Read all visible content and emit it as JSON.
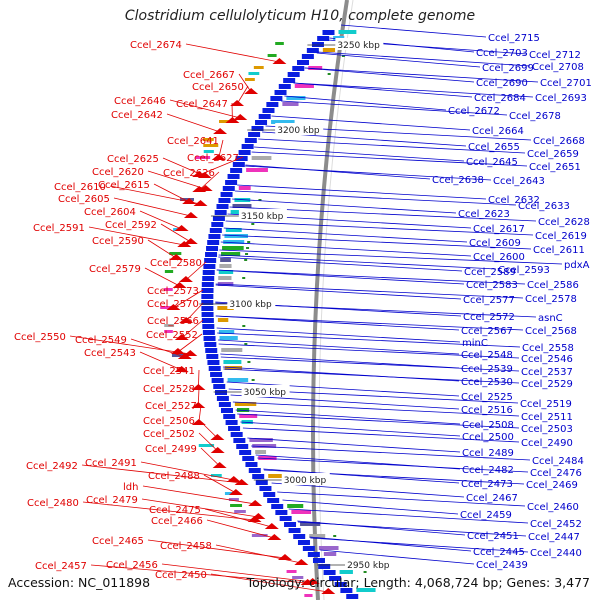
{
  "title": "Clostridium cellulolyticum H10, complete genome",
  "accession": "Accession: NC_011898",
  "summary": "Topology: circular; Length: 4,068,724 bp; Genes: 3,477",
  "kbp_marks": [
    "3250 kbp",
    "3200 kbp",
    "3150 kbp",
    "3100 kbp",
    "3050 kbp",
    "3000 kbp",
    "2950 kbp"
  ],
  "left_labels": [
    "Ccel_2674",
    "Ccel_2667",
    "Ccel_2650",
    "Ccel_2646",
    "Ccel_2647",
    "Ccel_2642",
    "Ccel_2641",
    "Ccel_2625",
    "Ccel_2627",
    "Ccel_2620",
    "Ccel_2626",
    "Ccel_2615",
    "Ccel_2610",
    "Ccel_2605",
    "Ccel_2604",
    "Ccel_2592",
    "Ccel_2591",
    "Ccel_2590",
    "Ccel_2580",
    "Ccel_2579",
    "Ccel_2573",
    "Ccel_2570",
    "Ccel_2566",
    "Ccel_2552",
    "Ccel_2550",
    "Ccel_2549",
    "Ccel_2543",
    "Ccel_2541",
    "Ccel_2528",
    "Ccel_2527",
    "Ccel_2506",
    "Ccel_2502",
    "Ccel_2499",
    "Ccel_2492",
    "Ccel_2491",
    "Ccel_2488",
    "ldh",
    "Ccel_2479",
    "Ccel_2480",
    "Ccel_2475",
    "Ccel_2466",
    "Ccel_2465",
    "Ccel_2458",
    "Ccel_2456",
    "Ccel_2457",
    "Ccel_2450"
  ],
  "right_labels": [
    "Ccel_2715",
    "Ccel_2703",
    "Ccel_2712",
    "Ccel_2699",
    "Ccel_2708",
    "Ccel_2690",
    "Ccel_2701",
    "Ccel_2684",
    "Ccel_2693",
    "Ccel_2672",
    "Ccel_2678",
    "Ccel_2664",
    "Ccel_2668",
    "Ccel_2655",
    "Ccel_2659",
    "Ccel_2645",
    "Ccel_2651",
    "Ccel_2638",
    "Ccel_2643",
    "Ccel_2632",
    "Ccel_2633",
    "Ccel_2623",
    "Ccel_2628",
    "Ccel_2617",
    "Ccel_2619",
    "Ccel_2609",
    "Ccel_2611",
    "Ccel_2600",
    "pdxA",
    "Ccel_2589",
    "Ccel_2593",
    "Ccel_2583",
    "Ccel_2586",
    "Ccel_2577",
    "Ccel_2578",
    "Ccel_2572",
    "asnC",
    "Ccel_2567",
    "Ccel_2568",
    "minC",
    "Ccel_2558",
    "Ccel_2548",
    "Ccel_2546",
    "Ccel_2539",
    "Ccel_2537",
    "Ccel_2530",
    "Ccel_2529",
    "Ccel_2525",
    "Ccel_2519",
    "Ccel_2516",
    "Ccel_2511",
    "Ccel_2508",
    "Ccel_2503",
    "Ccel_2500",
    "Ccel_2490",
    "Ccel_2489",
    "Ccel_2484",
    "Ccel_2482",
    "Ccel_2476",
    "Ccel_2473",
    "Ccel_2469",
    "Ccel_2467",
    "Ccel_2460",
    "Ccel_2459",
    "Ccel_2452",
    "Ccel_2451",
    "Ccel_2447",
    "Ccel_2445",
    "Ccel_2440",
    "Ccel_2439"
  ],
  "colors": {
    "reverse_strand": "#e00000",
    "forward_strand": "#0000cc",
    "backbone": "#808080",
    "rna_tick": "#228b22"
  }
}
